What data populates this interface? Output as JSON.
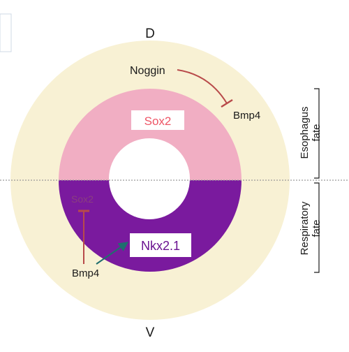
{
  "axes": {
    "dorsal": "D",
    "ventral": "V"
  },
  "dorsal": {
    "noggin": "Noggin",
    "bmp4": "Bmp4",
    "sox2": "Sox2",
    "fate_line1": "Esophagus",
    "fate_line2": "fate"
  },
  "ventral": {
    "sox2": "Sox2",
    "bmp4": "Bmp4",
    "nkx": "Nkx2.1",
    "fate_line1": "Respiratory",
    "fate_line2": "fate"
  },
  "colors": {
    "background": "#ffffff",
    "mesenchyme": "#f8f1d4",
    "dorsal_epithelium": "#f1aec3",
    "ventral_epithelium": "#7a1a9e",
    "lumen": "#ffffff",
    "inhibition": "#b84a4a",
    "activation": "#1f6e6e",
    "sox2_dorsal_text": "#ee5566",
    "ventral_label_text": "#8a3f7f",
    "nkx_text": "#6a1290",
    "nkx_box": "#ffffff",
    "black_text": "#1a1a1a",
    "divider": "#9a9a9a"
  }
}
